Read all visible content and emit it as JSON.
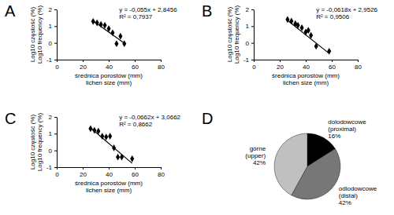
{
  "chart_data": [
    {
      "type": "scatter",
      "title": "A",
      "x": [
        28,
        31,
        34,
        37,
        40,
        43,
        46,
        49,
        52
      ],
      "values": [
        1.28,
        1.2,
        1.1,
        1.05,
        0.85,
        0.6,
        -0.05,
        0.4,
        -0.05
      ],
      "color": "#000000",
      "marker": "diamond",
      "x_label": [
        "średnica porostów (mm)",
        "lichen size (mm)"
      ],
      "y_label": [
        "Log10 częstość (%)",
        "Log10 frequency (%)"
      ],
      "xlim": [
        0,
        80
      ],
      "xticks": [
        0,
        20,
        40,
        60,
        80
      ],
      "ylim": [
        -1,
        2
      ],
      "yticks": [
        -1,
        0,
        1,
        2
      ],
      "trendline": {
        "slope": -0.055,
        "intercept": 2.8456,
        "r2": 0.7937,
        "label": "y = -0,055x + 2,8456",
        "r2_label": "R² = 0,7937"
      }
    },
    {
      "type": "scatter",
      "title": "B",
      "x": [
        26,
        29,
        32,
        34,
        37,
        40,
        42,
        44,
        48,
        58
      ],
      "values": [
        1.4,
        1.3,
        1.15,
        1.05,
        0.9,
        0.65,
        0.75,
        0.45,
        -0.2,
        -0.5
      ],
      "color": "#000000",
      "marker": "diamond",
      "x_label": [
        "średnica porostów (mm)",
        "lichen size (mm)"
      ],
      "y_label": [
        "Log10 częstość (%)",
        "Log10 frequency (%)"
      ],
      "xlim": [
        0,
        80
      ],
      "xticks": [
        0,
        20,
        40,
        60,
        80
      ],
      "ylim": [
        -1,
        2
      ],
      "yticks": [
        -1,
        0,
        1,
        2
      ],
      "trendline": {
        "slope": -0.0618,
        "intercept": 2.9526,
        "r2": 0.9506,
        "label": "y = -0,0618x + 2,9526",
        "r2_label": "R² = 0,9506"
      }
    },
    {
      "type": "scatter",
      "title": "C",
      "x": [
        26,
        29,
        32,
        35,
        38,
        41,
        44,
        47,
        50,
        58
      ],
      "values": [
        1.3,
        1.2,
        1.15,
        0.85,
        0.8,
        0.85,
        0.15,
        -0.4,
        -0.4,
        -0.5
      ],
      "color": "#000000",
      "marker": "diamond",
      "x_label": [
        "średnica porostów (mm)",
        "lichen size (mm)"
      ],
      "y_label": [
        "Log10 częstość (%)",
        "Log10 frequency (%)"
      ],
      "xlim": [
        0,
        80
      ],
      "xticks": [
        0,
        20,
        40,
        60,
        80
      ],
      "ylim": [
        -1,
        2
      ],
      "yticks": [
        -1,
        0,
        1,
        2
      ],
      "trendline": {
        "slope": -0.0662,
        "intercept": 3.0662,
        "r2": 0.8662,
        "label": "y = -0,0662x + 3,0662",
        "r2_label": "R² = 0,8662"
      }
    },
    {
      "type": "pie",
      "title": "D",
      "categories": [
        "dolodowcowe (proximal)",
        "odlodowcowe (distal)",
        "górne (upper)"
      ],
      "values": [
        16,
        42,
        42
      ],
      "value_labels": [
        "16%",
        "42%",
        "42%"
      ],
      "colors": [
        "#000000",
        "#777777",
        "#c0c0c0"
      ],
      "data_labels": true
    }
  ]
}
